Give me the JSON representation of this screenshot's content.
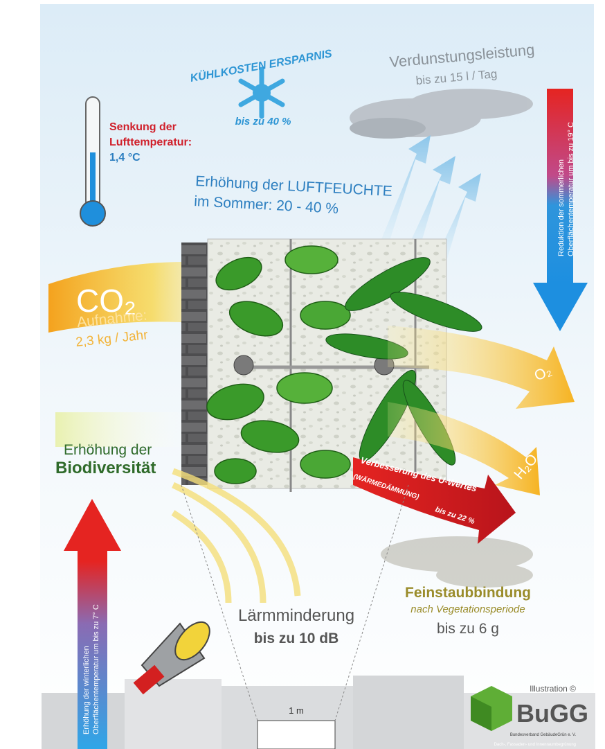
{
  "cooling": {
    "title": "KÜHLKOSTEN ERSPARNIS",
    "value": "bis zu 40 %"
  },
  "evaporation": {
    "title": "Verdunstungsleistung",
    "value": "bis zu 15 l / Tag"
  },
  "air_temperature": {
    "lines": [
      "Senkung der",
      "Lufttemperatur:",
      "1,4 °C"
    ]
  },
  "humidity": {
    "lines": [
      "Erhöhung der LUFTFEUCHTE",
      "im Sommer: 20 - 40 %"
    ]
  },
  "summer_surface": {
    "lines": [
      "Reduktion der sommerlichen",
      "Oberflächentemperatur um bis zu 19° C"
    ]
  },
  "co2": {
    "formula": "CO₂",
    "label": "Aufnahme:",
    "value": "2,3 kg / Jahr"
  },
  "oxygen": "O₂",
  "water": "H₂O",
  "biodiversity": {
    "lines": [
      "Erhöhung der",
      "Biodiversität"
    ]
  },
  "u_value": {
    "lines": [
      "Verbesserung des U-Wertes",
      "(WÄRMEDÄMMUNG)",
      "bis zu 22 %"
    ]
  },
  "fine_dust": {
    "lines": [
      "Feinstaubbindung",
      "nach Vegetationsperiode",
      "bis zu 6 g"
    ]
  },
  "noise": {
    "lines": [
      "Lärmminderung",
      "bis zu 10 dB"
    ]
  },
  "winter_surface": {
    "lines": [
      "Erhöhung der winterlichen",
      "Oberflächentemperatur um bis zu 7° C"
    ]
  },
  "scale": "1 m",
  "credit": {
    "illustration": "Illustration ©",
    "logo": "BuGG",
    "name": "Bundesverband GebäudeGrün e. V.",
    "tagline": "Dach-, Fassaden- und Innenraumbegrünung"
  }
}
